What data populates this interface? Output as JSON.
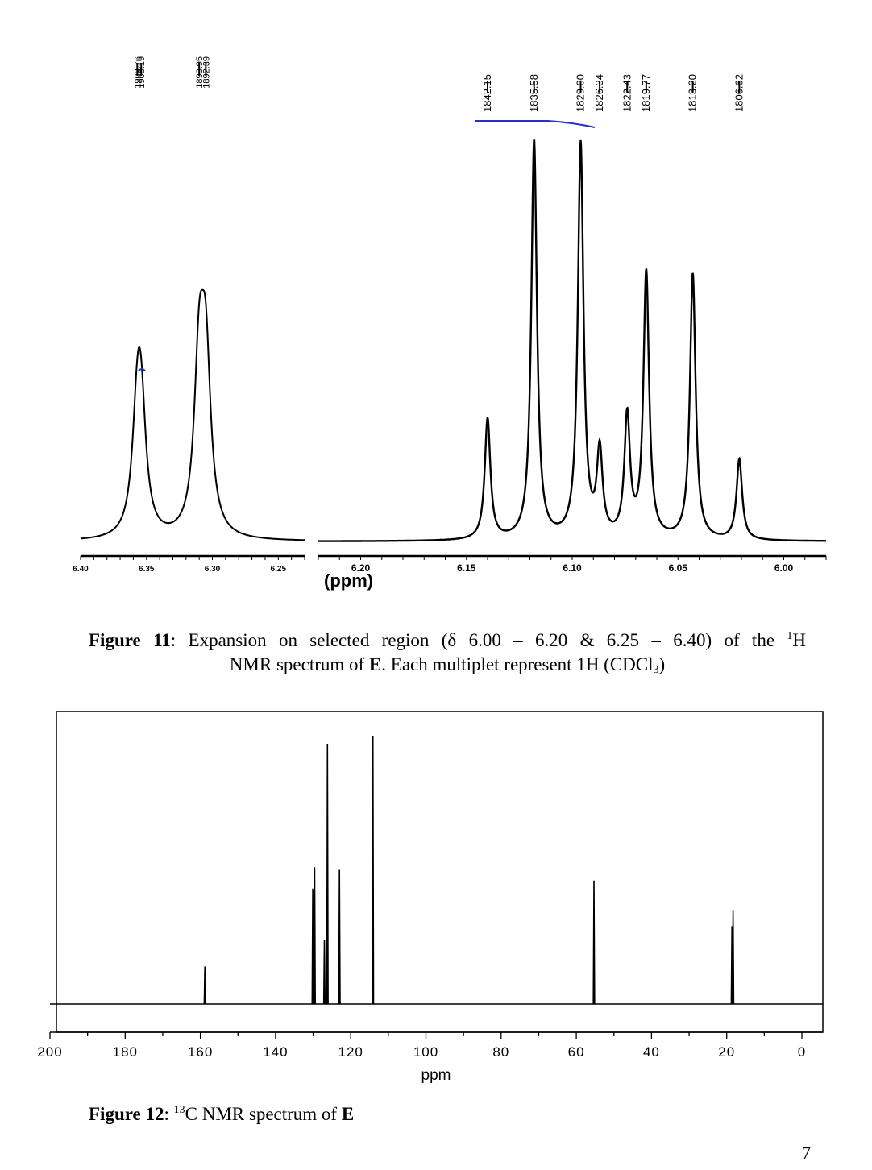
{
  "figure11": {
    "chart_data": {
      "type": "line",
      "spectrum": "1H NMR",
      "xlabel": "(ppm)",
      "left_panel": {
        "xlim": [
          6.4,
          6.23
        ],
        "tick_labels": [
          "6.40",
          "6.35",
          "6.30",
          "6.25"
        ],
        "peak_labels": [
          "1909.76",
          "1908.19",
          "1893.95",
          "1892.39"
        ],
        "peaks": [
          {
            "ppm": 6.357,
            "height": 0.41
          },
          {
            "ppm": 6.354,
            "height": 0.41
          },
          {
            "ppm": 6.31,
            "height": 0.63
          },
          {
            "ppm": 6.305,
            "height": 0.63
          }
        ]
      },
      "right_panel": {
        "xlim": [
          6.22,
          5.98
        ],
        "tick_labels": [
          "6.20",
          "6.15",
          "6.10",
          "6.05",
          "6.00"
        ],
        "peak_labels": [
          "1842.15",
          "1835.58",
          "1829.00",
          "1826.34",
          "1822.43",
          "1819.77",
          "1813.20",
          "1806.62"
        ],
        "peaks": [
          {
            "ppm": 6.14,
            "height": 0.3
          },
          {
            "ppm": 6.118,
            "height": 0.99
          },
          {
            "ppm": 6.096,
            "height": 0.98
          },
          {
            "ppm": 6.087,
            "height": 0.21
          },
          {
            "ppm": 6.074,
            "height": 0.3
          },
          {
            "ppm": 6.065,
            "height": 0.66
          },
          {
            "ppm": 6.043,
            "height": 0.66
          },
          {
            "ppm": 6.021,
            "height": 0.2
          }
        ]
      }
    },
    "caption": {
      "label": "Figure 11",
      "line1_a": ": Expansion on selected region (δ 6.00 – 6.20 & 6.25 – 6.40) of the ",
      "sup": "1",
      "line1_b": "H",
      "line2_a": "NMR spectrum of ",
      "compound": "E",
      "line2_b": ". Each multiplet represent 1H (CDCl",
      "sub": "3",
      "line2_c": ")"
    }
  },
  "figure12": {
    "chart_data": {
      "type": "line",
      "spectrum": "13C NMR",
      "xlabel": "ppm",
      "xlim": [
        200,
        0
      ],
      "tick_labels": [
        "200",
        "180",
        "160",
        "140",
        "120",
        "100",
        "80",
        "60",
        "40",
        "20",
        "0"
      ],
      "peaks": [
        {
          "ppm": 158.8,
          "height": 0.14
        },
        {
          "ppm": 130.1,
          "height": 0.43
        },
        {
          "ppm": 129.6,
          "height": 0.51
        },
        {
          "ppm": 127.0,
          "height": 0.24
        },
        {
          "ppm": 126.2,
          "height": 0.97
        },
        {
          "ppm": 123.0,
          "height": 0.5
        },
        {
          "ppm": 114.1,
          "height": 1.0
        },
        {
          "ppm": 55.3,
          "height": 0.46
        },
        {
          "ppm": 18.6,
          "height": 0.29
        },
        {
          "ppm": 18.3,
          "height": 0.35
        }
      ]
    },
    "caption": {
      "label": "Figure 12",
      "text_a": ": ",
      "sup": "13",
      "text_b": "C NMR spectrum of ",
      "compound": "E"
    }
  },
  "page_number": "7",
  "colors": {
    "ink": "#000000",
    "annotation": "#2233cc"
  }
}
